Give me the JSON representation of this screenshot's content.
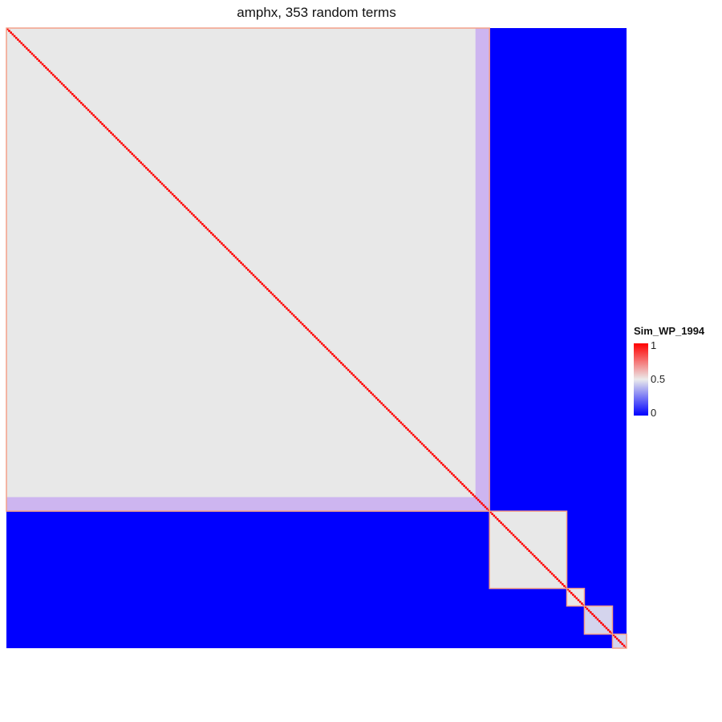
{
  "chart_data": {
    "type": "heatmap",
    "title": "amphx, 353 random terms",
    "n_terms": 353,
    "colors": {
      "low": "#0000ff",
      "mid": "#ebebeb",
      "high": "#ff0000",
      "background_block": "#e8e8e8",
      "intermediate_band": "#cdb5f0",
      "cluster_outline": "#f4a089"
    },
    "clusters": [
      {
        "start": 0,
        "end": 274,
        "within_value": 0.5
      },
      {
        "start": 275,
        "end": 318,
        "within_value": 0.5
      },
      {
        "start": 319,
        "end": 328,
        "within_value": 0.5
      },
      {
        "start": 329,
        "end": 344,
        "within_value": 0.45
      },
      {
        "start": 345,
        "end": 352,
        "within_value": 0.45
      }
    ],
    "bands": [
      {
        "rows": [
          0,
          274
        ],
        "cols": [
          267,
          274
        ],
        "value": 0.35
      },
      {
        "rows": [
          267,
          274
        ],
        "cols": [
          0,
          274
        ],
        "value": 0.35
      }
    ],
    "diagonal_value": 1,
    "between_cluster_value": 0,
    "legend": {
      "title": "Sim_WP_1994",
      "ticks": [
        "1",
        "0.5",
        "0"
      ],
      "tick_values": [
        1,
        0.5,
        0
      ]
    }
  }
}
